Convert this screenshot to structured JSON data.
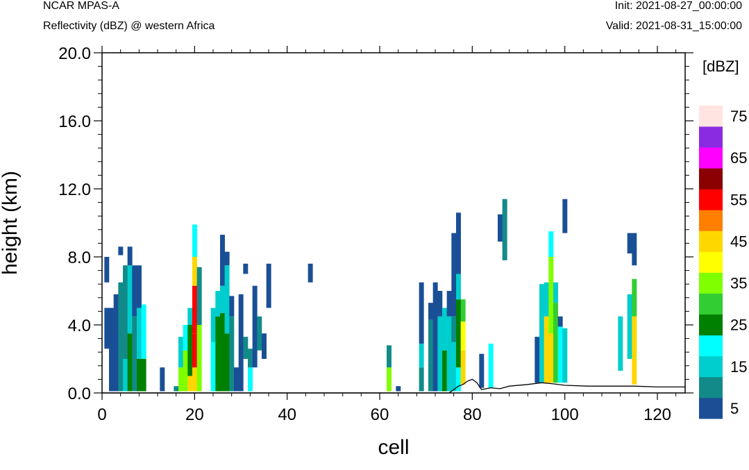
{
  "header": {
    "model": "NCAR MPAS-A",
    "field": "Reflectivity (dBZ) @ western Africa",
    "init": "Init: 2021-08-27_00:00:00",
    "valid": "Valid: 2021-08-31_15:00:00"
  },
  "chart_data": {
    "type": "heatmap",
    "title": "Reflectivity (dBZ) @ western Africa",
    "xlabel": "cell",
    "ylabel": "height (km)",
    "xlim": [
      0,
      126
    ],
    "ylim": [
      0,
      20
    ],
    "xticks": [
      "0",
      "20",
      "40",
      "60",
      "80",
      "100",
      "120"
    ],
    "xtick_values": [
      0,
      20,
      40,
      60,
      80,
      100,
      120
    ],
    "yticks": [
      "0.0",
      "4.0",
      "8.0",
      "12.0",
      "16.0",
      "20.0"
    ],
    "ytick_values": [
      0,
      4,
      8,
      12,
      16,
      20
    ],
    "colorbar": {
      "units": "[dBZ]",
      "levels": [
        5,
        10,
        15,
        20,
        25,
        30,
        35,
        40,
        45,
        50,
        55,
        60,
        65,
        70,
        75
      ],
      "labels": [
        "5",
        "15",
        "25",
        "35",
        "45",
        "55",
        "65",
        "75"
      ],
      "colors": [
        "#1a4f96",
        "#128a8a",
        "#00cdcd",
        "#00ffff",
        "#008000",
        "#32cd32",
        "#7fff00",
        "#ffff00",
        "#ffd700",
        "#ff7f00",
        "#ff0000",
        "#8b0000",
        "#ff00ff",
        "#8a2be2",
        "#ffe4e1"
      ]
    },
    "columns": [
      {
        "x": 1,
        "segments": [
          [
            2.6,
            5.0,
            5
          ],
          [
            6.5,
            8.0,
            5
          ]
        ]
      },
      {
        "x": 2,
        "segments": [
          [
            0.1,
            5.0,
            5
          ]
        ]
      },
      {
        "x": 3,
        "segments": [
          [
            0.1,
            5.8,
            5
          ]
        ]
      },
      {
        "x": 4,
        "segments": [
          [
            0.1,
            6.5,
            10
          ],
          [
            8.1,
            8.6,
            5
          ]
        ]
      },
      {
        "x": 5,
        "segments": [
          [
            0.1,
            2.0,
            15
          ],
          [
            2.0,
            7.5,
            10
          ]
        ]
      },
      {
        "x": 6,
        "segments": [
          [
            0.1,
            3.5,
            25
          ],
          [
            3.5,
            7.5,
            15
          ],
          [
            7.5,
            8.6,
            5
          ]
        ]
      },
      {
        "x": 7,
        "segments": [
          [
            0.1,
            4.5,
            10
          ],
          [
            4.5,
            7.5,
            5
          ]
        ]
      },
      {
        "x": 8,
        "segments": [
          [
            0.1,
            2.0,
            25
          ],
          [
            2.0,
            5.0,
            15
          ],
          [
            5.0,
            7.5,
            5
          ]
        ]
      },
      {
        "x": 9,
        "segments": [
          [
            0.1,
            2.0,
            25
          ],
          [
            2.0,
            5.2,
            20
          ]
        ]
      },
      {
        "x": 13,
        "segments": [
          [
            0.1,
            1.5,
            5
          ]
        ]
      },
      {
        "x": 16,
        "segments": [
          [
            0.1,
            0.4,
            10
          ]
        ]
      },
      {
        "x": 17,
        "segments": [
          [
            0.1,
            1.5,
            35
          ],
          [
            1.5,
            3.3,
            15
          ]
        ]
      },
      {
        "x": 18,
        "segments": [
          [
            0.1,
            2.5,
            35
          ],
          [
            2.5,
            4.0,
            20
          ]
        ]
      },
      {
        "x": 19,
        "segments": [
          [
            0.1,
            1.0,
            45
          ],
          [
            1.0,
            4.0,
            25
          ],
          [
            4.0,
            5.0,
            15
          ]
        ]
      },
      {
        "x": 20,
        "segments": [
          [
            0.1,
            1.5,
            45
          ],
          [
            1.5,
            3.5,
            55
          ],
          [
            3.5,
            6.3,
            55
          ],
          [
            6.3,
            8.0,
            45
          ],
          [
            8.0,
            9.9,
            20
          ]
        ]
      },
      {
        "x": 21,
        "segments": [
          [
            0.1,
            4.0,
            35
          ],
          [
            4.0,
            7.4,
            10
          ]
        ]
      },
      {
        "x": 24,
        "segments": [
          [
            0.1,
            3.0,
            20
          ],
          [
            3.0,
            5.0,
            15
          ]
        ]
      },
      {
        "x": 25,
        "segments": [
          [
            0.1,
            4.5,
            25
          ],
          [
            4.5,
            6.0,
            15
          ]
        ]
      },
      {
        "x": 26,
        "segments": [
          [
            0.1,
            4.7,
            25
          ],
          [
            4.7,
            6.3,
            15
          ],
          [
            6.3,
            9.3,
            5
          ]
        ]
      },
      {
        "x": 27,
        "segments": [
          [
            0.1,
            3.5,
            25
          ],
          [
            3.5,
            7.5,
            15
          ],
          [
            7.5,
            8.3,
            5
          ]
        ]
      },
      {
        "x": 28,
        "segments": [
          [
            0.1,
            4.5,
            10
          ],
          [
            4.5,
            5.7,
            5
          ]
        ]
      },
      {
        "x": 29,
        "segments": [
          [
            0.1,
            1.5,
            5
          ]
        ]
      },
      {
        "x": 30,
        "segments": [
          [
            0.1,
            5.8,
            5
          ]
        ]
      },
      {
        "x": 31,
        "segments": [
          [
            2.0,
            3.3,
            10
          ],
          [
            7.0,
            7.6,
            5
          ]
        ]
      },
      {
        "x": 32,
        "segments": [
          [
            0.1,
            1.5,
            20
          ],
          [
            1.5,
            2.6,
            10
          ]
        ]
      },
      {
        "x": 33,
        "segments": [
          [
            1.5,
            6.3,
            5
          ]
        ]
      },
      {
        "x": 34,
        "segments": [
          [
            2.5,
            4.5,
            10
          ]
        ]
      },
      {
        "x": 35,
        "segments": [
          [
            2.0,
            3.5,
            5
          ]
        ]
      },
      {
        "x": 36,
        "segments": [
          [
            5.0,
            7.6,
            5
          ]
        ]
      },
      {
        "x": 45,
        "segments": [
          [
            6.5,
            7.6,
            5
          ]
        ]
      },
      {
        "x": 62,
        "segments": [
          [
            0.1,
            1.5,
            35
          ],
          [
            1.5,
            2.8,
            10
          ]
        ]
      },
      {
        "x": 64,
        "segments": [
          [
            0.1,
            0.4,
            5
          ]
        ]
      },
      {
        "x": 69,
        "segments": [
          [
            0.1,
            1.5,
            10
          ],
          [
            1.5,
            2.9,
            15
          ],
          [
            2.9,
            6.5,
            5
          ]
        ]
      },
      {
        "x": 71,
        "segments": [
          [
            0.1,
            4.3,
            10
          ],
          [
            4.3,
            5.3,
            5
          ]
        ]
      },
      {
        "x": 72,
        "segments": [
          [
            0.1,
            6.5,
            5
          ]
        ]
      },
      {
        "x": 73,
        "segments": [
          [
            0.1,
            4.5,
            15
          ],
          [
            4.5,
            6.0,
            5
          ]
        ]
      },
      {
        "x": 74,
        "segments": [
          [
            0.1,
            2.5,
            25
          ],
          [
            2.5,
            5.0,
            15
          ]
        ]
      },
      {
        "x": 75,
        "segments": [
          [
            0.1,
            4.5,
            15
          ],
          [
            4.5,
            6.0,
            5
          ]
        ]
      },
      {
        "x": 76,
        "segments": [
          [
            0.1,
            3.0,
            15
          ],
          [
            3.0,
            4.5,
            10
          ],
          [
            4.5,
            9.4,
            5
          ]
        ]
      },
      {
        "x": 77,
        "segments": [
          [
            0.1,
            1.5,
            20
          ],
          [
            1.5,
            5.5,
            25
          ],
          [
            5.5,
            7.0,
            15
          ],
          [
            7.0,
            10.6,
            5
          ]
        ]
      },
      {
        "x": 78,
        "segments": [
          [
            0.5,
            2.5,
            45
          ],
          [
            2.5,
            4.2,
            40
          ],
          [
            4.2,
            5.5,
            30
          ]
        ]
      },
      {
        "x": 82,
        "segments": [
          [
            0.3,
            2.3,
            5
          ]
        ]
      },
      {
        "x": 84,
        "segments": [
          [
            0.3,
            2.9,
            20
          ]
        ]
      },
      {
        "x": 86,
        "segments": [
          [
            8.9,
            10.5,
            5
          ]
        ]
      },
      {
        "x": 87,
        "segments": [
          [
            7.8,
            11.4,
            10
          ]
        ]
      },
      {
        "x": 94,
        "segments": [
          [
            0.6,
            3.3,
            5
          ]
        ]
      },
      {
        "x": 95,
        "segments": [
          [
            0.6,
            6.4,
            15
          ]
        ]
      },
      {
        "x": 96,
        "segments": [
          [
            0.6,
            4.5,
            45
          ],
          [
            4.5,
            6.5,
            15
          ]
        ]
      },
      {
        "x": 97,
        "segments": [
          [
            0.6,
            3.5,
            45
          ],
          [
            3.5,
            8.0,
            35
          ],
          [
            8.0,
            9.5,
            20
          ]
        ]
      },
      {
        "x": 98,
        "segments": [
          [
            0.6,
            5.3,
            30
          ],
          [
            5.3,
            6.5,
            15
          ]
        ]
      },
      {
        "x": 99,
        "segments": [
          [
            0.6,
            3.9,
            20
          ],
          [
            3.9,
            4.5,
            5
          ]
        ]
      },
      {
        "x": 100,
        "segments": [
          [
            0.6,
            3.8,
            15
          ],
          [
            9.4,
            11.4,
            5
          ]
        ]
      },
      {
        "x": 112,
        "segments": [
          [
            1.3,
            4.5,
            15
          ]
        ]
      },
      {
        "x": 114,
        "segments": [
          [
            2.0,
            5.8,
            15
          ],
          [
            8.2,
            9.4,
            5
          ]
        ]
      },
      {
        "x": 115,
        "segments": [
          [
            0.5,
            4.5,
            45
          ],
          [
            4.5,
            6.7,
            30
          ],
          [
            7.5,
            9.4,
            5
          ]
        ]
      }
    ],
    "terrain": [
      [
        0,
        0
      ],
      [
        75,
        0
      ],
      [
        76,
        0.2
      ],
      [
        77,
        0.4
      ],
      [
        78,
        0.5
      ],
      [
        79,
        0.7
      ],
      [
        80,
        0.8
      ],
      [
        81,
        0.6
      ],
      [
        82,
        0.2
      ],
      [
        84,
        0.3
      ],
      [
        86,
        0.25
      ],
      [
        88,
        0.4
      ],
      [
        92,
        0.5
      ],
      [
        95,
        0.6
      ],
      [
        97,
        0.55
      ],
      [
        100,
        0.45
      ],
      [
        105,
        0.4
      ],
      [
        110,
        0.4
      ],
      [
        115,
        0.4
      ],
      [
        120,
        0.35
      ],
      [
        126,
        0.35
      ]
    ]
  }
}
